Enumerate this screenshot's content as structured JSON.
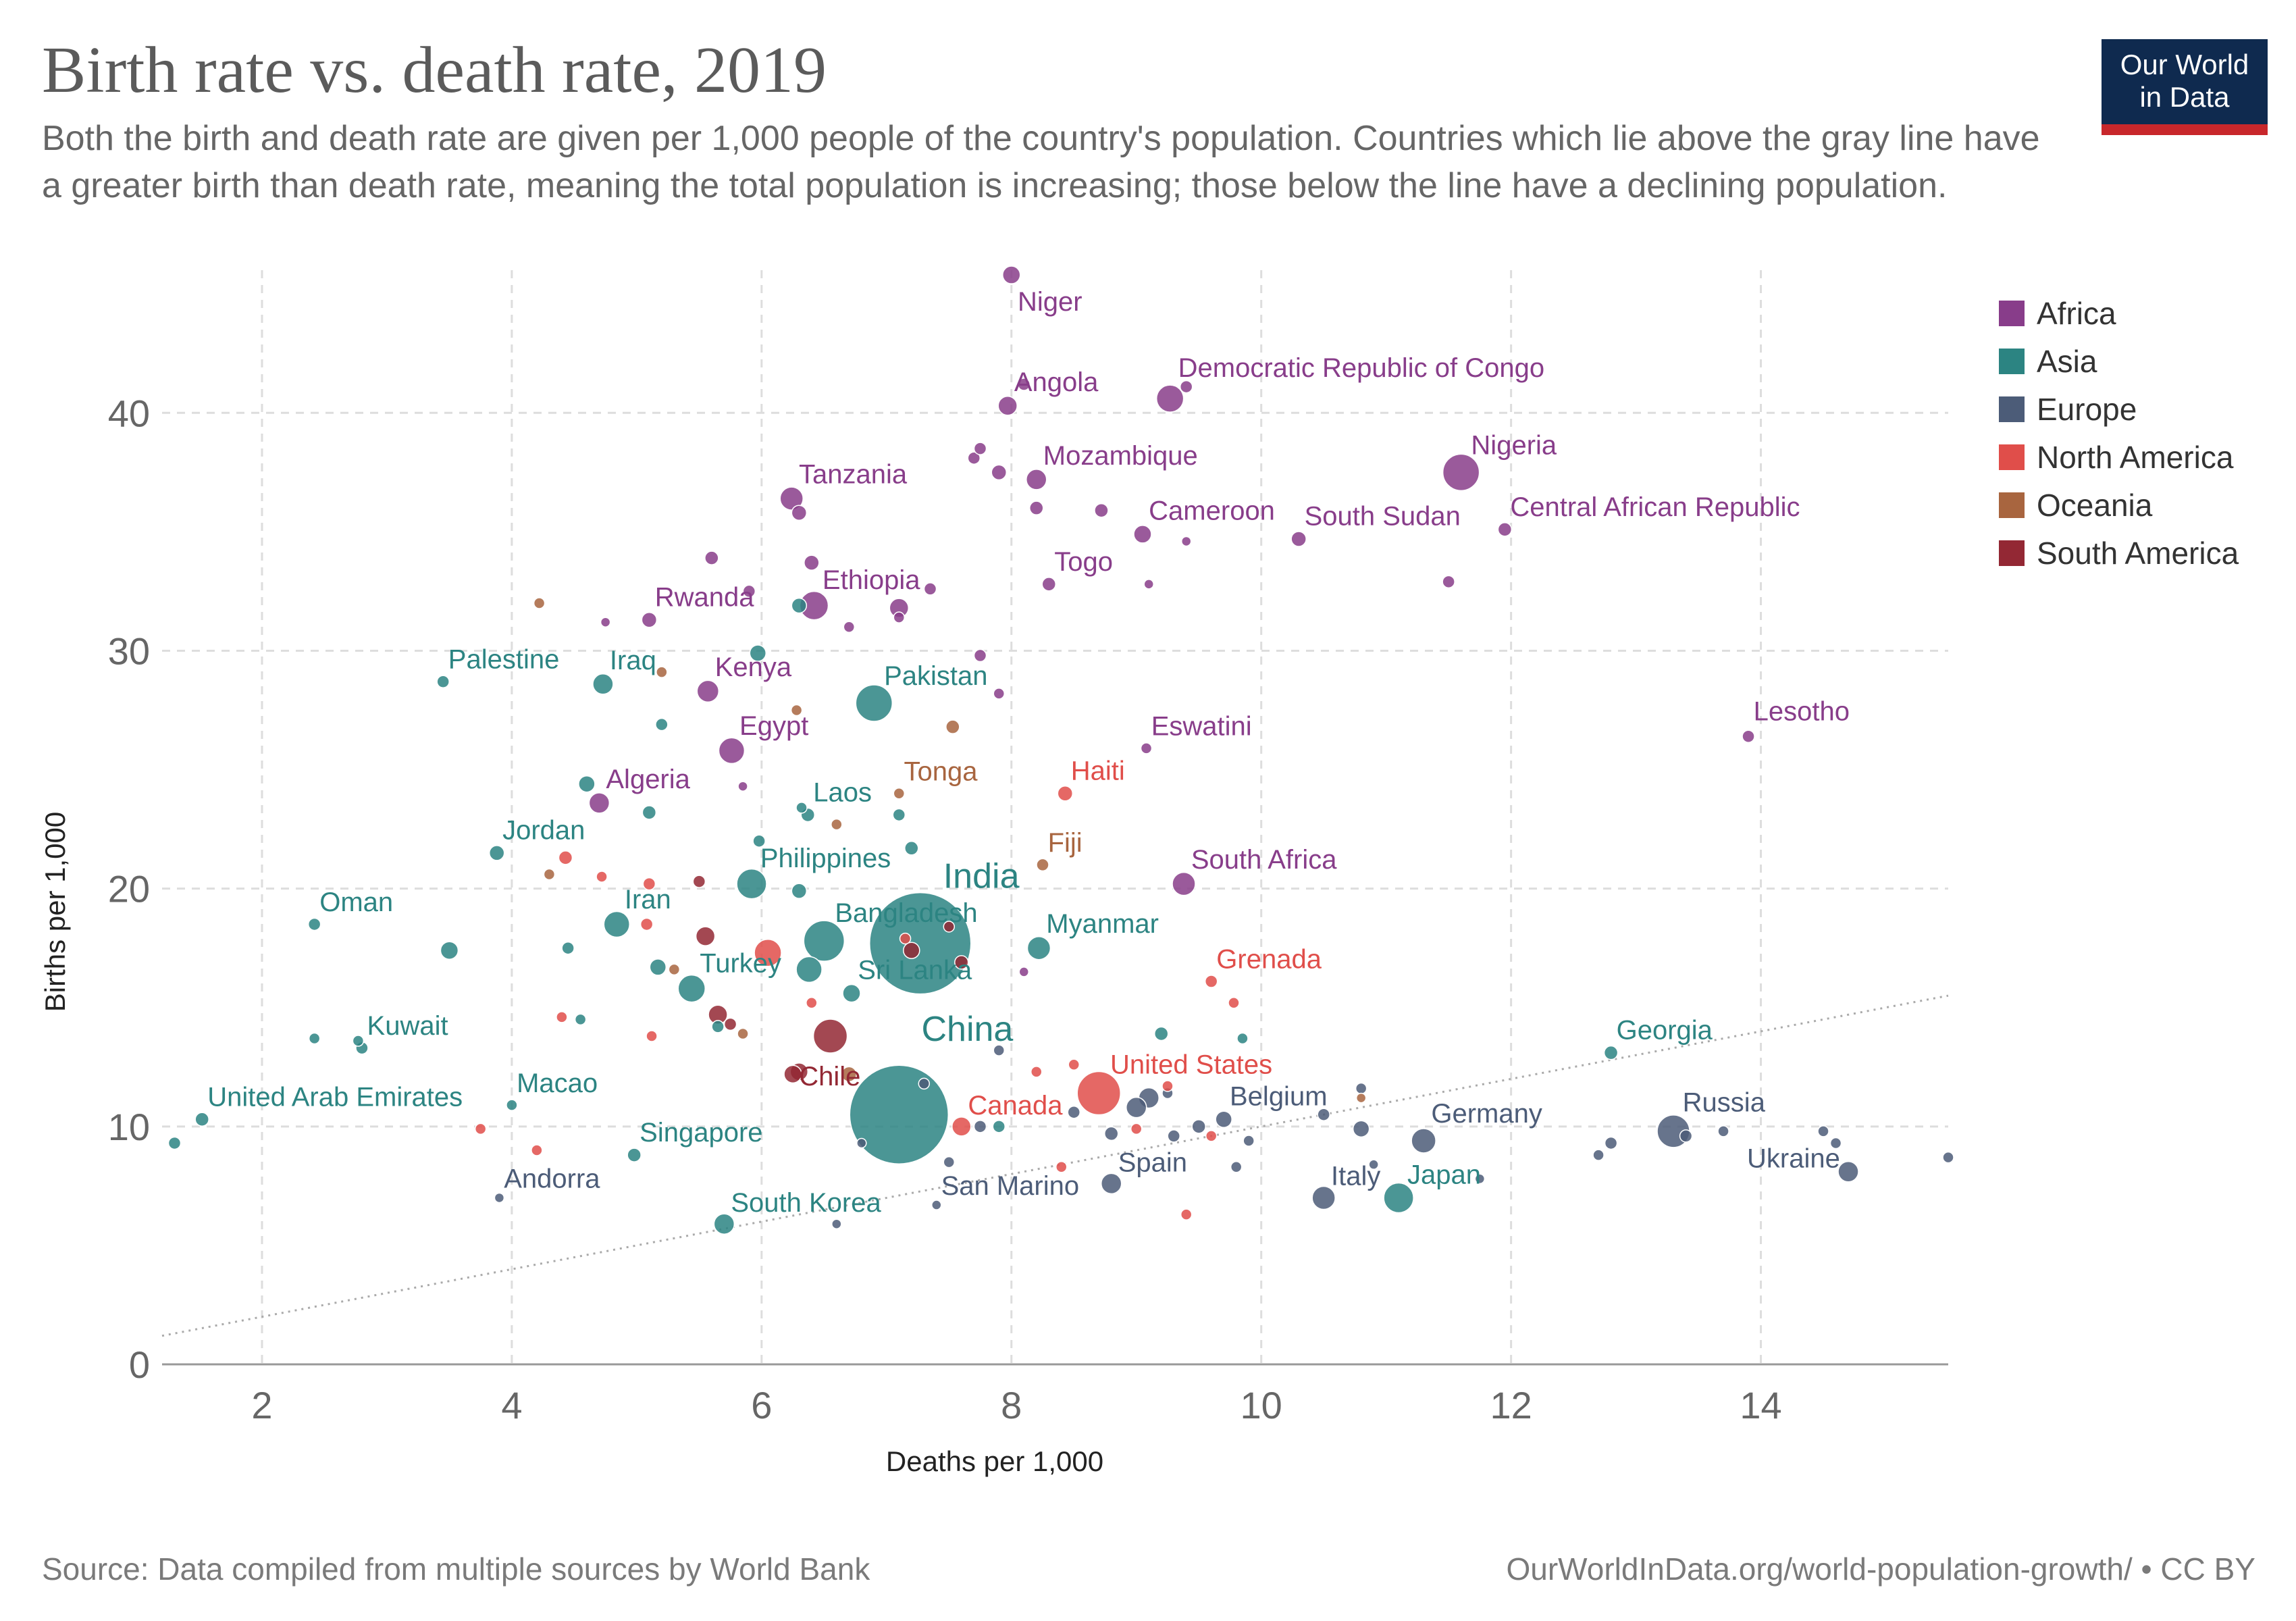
{
  "header": {
    "title": "Birth rate vs. death rate, 2019",
    "subtitle": "Both the birth and death rate are given per 1,000 people of the country's population. Countries which lie above the gray line have a greater birth than death rate, meaning the total population is increasing; those below the line have a declining population."
  },
  "logo": {
    "line1": "Our World",
    "line2": "in Data"
  },
  "footer": {
    "source": "Source: Data compiled from multiple sources by World Bank",
    "license": "OurWorldInData.org/world-population-growth/ • CC BY"
  },
  "legend": [
    {
      "label": "Africa",
      "color": "#883d8a"
    },
    {
      "label": "Asia",
      "color": "#2c8482"
    },
    {
      "label": "Europe",
      "color": "#4c5c78"
    },
    {
      "label": "North America",
      "color": "#e04e4a"
    },
    {
      "label": "Oceania",
      "color": "#a8653f"
    },
    {
      "label": "South America",
      "color": "#932834"
    }
  ],
  "chart_data": {
    "type": "scatter",
    "xlabel": "Deaths per 1,000",
    "ylabel": "Births per 1,000",
    "xlim": [
      1.2,
      15.5
    ],
    "ylim": [
      0,
      46
    ],
    "xticks": [
      "2",
      "4",
      "6",
      "8",
      "10",
      "12",
      "14"
    ],
    "yticks": [
      "0",
      "10",
      "20",
      "30",
      "40"
    ],
    "grid": true,
    "reference_line": "y = x",
    "labeled_points": [
      {
        "label": "Niger",
        "region": "Africa",
        "x": 8.0,
        "y": 45.8,
        "r": 13
      },
      {
        "label": "Angola",
        "region": "Africa",
        "x": 7.97,
        "y": 40.3,
        "r": 14
      },
      {
        "label": "Democratic Republic of Congo",
        "region": "Africa",
        "x": 9.27,
        "y": 40.6,
        "r": 20
      },
      {
        "label": "Nigeria",
        "region": "Africa",
        "x": 11.6,
        "y": 37.5,
        "r": 27
      },
      {
        "label": "Mozambique",
        "region": "Africa",
        "x": 8.2,
        "y": 37.2,
        "r": 15
      },
      {
        "label": "Tanzania",
        "region": "Africa",
        "x": 6.24,
        "y": 36.4,
        "r": 17
      },
      {
        "label": "Cameroon",
        "region": "Africa",
        "x": 9.05,
        "y": 34.9,
        "r": 13
      },
      {
        "label": "South Sudan",
        "region": "Africa",
        "x": 10.3,
        "y": 34.7,
        "r": 11
      },
      {
        "label": "Central African Republic",
        "region": "Africa",
        "x": 11.95,
        "y": 35.1,
        "r": 10
      },
      {
        "label": "Togo",
        "region": "Africa",
        "x": 8.3,
        "y": 32.8,
        "r": 10
      },
      {
        "label": "Ethiopia",
        "region": "Africa",
        "x": 6.42,
        "y": 31.9,
        "r": 21
      },
      {
        "label": "Rwanda",
        "region": "Africa",
        "x": 5.1,
        "y": 31.3,
        "r": 11
      },
      {
        "label": "Kenya",
        "region": "Africa",
        "x": 5.57,
        "y": 28.3,
        "r": 16
      },
      {
        "label": "Egypt",
        "region": "Africa",
        "x": 5.76,
        "y": 25.8,
        "r": 19
      },
      {
        "label": "Algeria",
        "region": "Africa",
        "x": 4.7,
        "y": 23.6,
        "r": 15
      },
      {
        "label": "Eswatini",
        "region": "Africa",
        "x": 9.08,
        "y": 25.9,
        "r": 8
      },
      {
        "label": "Lesotho",
        "region": "Africa",
        "x": 13.9,
        "y": 26.4,
        "r": 9
      },
      {
        "label": "South Africa",
        "region": "Africa",
        "x": 9.38,
        "y": 20.2,
        "r": 17
      },
      {
        "label": "Palestine",
        "region": "Asia",
        "x": 3.45,
        "y": 28.7,
        "r": 9
      },
      {
        "label": "Iraq",
        "region": "Asia",
        "x": 4.73,
        "y": 28.6,
        "r": 15
      },
      {
        "label": "Pakistan",
        "region": "Asia",
        "x": 6.9,
        "y": 27.8,
        "r": 27
      },
      {
        "label": "Laos",
        "region": "Asia",
        "x": 6.37,
        "y": 23.1,
        "r": 10
      },
      {
        "label": "Jordan",
        "region": "Asia",
        "x": 3.88,
        "y": 21.5,
        "r": 11
      },
      {
        "label": "Philippines",
        "region": "Asia",
        "x": 5.92,
        "y": 20.2,
        "r": 22
      },
      {
        "label": "Oman",
        "region": "Asia",
        "x": 2.42,
        "y": 18.5,
        "r": 9
      },
      {
        "label": "Iran",
        "region": "Asia",
        "x": 4.84,
        "y": 18.5,
        "r": 19
      },
      {
        "label": "Bangladesh",
        "region": "Asia",
        "x": 6.5,
        "y": 17.8,
        "r": 30
      },
      {
        "label": "India",
        "region": "Asia",
        "x": 7.27,
        "y": 17.7,
        "r": 75
      },
      {
        "label": "Myanmar",
        "region": "Asia",
        "x": 8.22,
        "y": 17.5,
        "r": 17
      },
      {
        "label": "Turkey",
        "region": "Asia",
        "x": 5.44,
        "y": 15.8,
        "r": 20
      },
      {
        "label": "Sri Lanka",
        "region": "Asia",
        "x": 6.72,
        "y": 15.6,
        "r": 13
      },
      {
        "label": "Kuwait",
        "region": "Asia",
        "x": 2.8,
        "y": 13.3,
        "r": 9
      },
      {
        "label": "Georgia",
        "region": "Asia",
        "x": 12.8,
        "y": 13.1,
        "r": 10
      },
      {
        "label": "China",
        "region": "Asia",
        "x": 7.1,
        "y": 10.5,
        "r": 73
      },
      {
        "label": "United Arab Emirates",
        "region": "Asia",
        "x": 1.52,
        "y": 10.3,
        "r": 10
      },
      {
        "label": "Macao",
        "region": "Asia",
        "x": 4.0,
        "y": 10.9,
        "r": 8
      },
      {
        "label": "Singapore",
        "region": "Asia",
        "x": 4.98,
        "y": 8.8,
        "r": 10
      },
      {
        "label": "South Korea",
        "region": "Asia",
        "x": 5.7,
        "y": 5.9,
        "r": 15
      },
      {
        "label": "Japan",
        "region": "Asia",
        "x": 11.1,
        "y": 7.0,
        "r": 22
      },
      {
        "label": "Belgium",
        "region": "Europe",
        "x": 9.7,
        "y": 10.3,
        "r": 12
      },
      {
        "label": "Germany",
        "region": "Europe",
        "x": 11.3,
        "y": 9.4,
        "r": 18
      },
      {
        "label": "Russia",
        "region": "Europe",
        "x": 13.3,
        "y": 9.8,
        "r": 24
      },
      {
        "label": "Ukraine",
        "region": "Europe",
        "x": 14.7,
        "y": 8.1,
        "r": 15
      },
      {
        "label": "Spain",
        "region": "Europe",
        "x": 8.8,
        "y": 7.6,
        "r": 15
      },
      {
        "label": "Italy",
        "region": "Europe",
        "x": 10.5,
        "y": 7.0,
        "r": 17
      },
      {
        "label": "San Marino",
        "region": "Europe",
        "x": 7.4,
        "y": 6.7,
        "r": 7
      },
      {
        "label": "Andorra",
        "region": "Europe",
        "x": 3.9,
        "y": 7.0,
        "r": 7
      },
      {
        "label": "Haiti",
        "region": "North America",
        "x": 8.43,
        "y": 24.0,
        "r": 11
      },
      {
        "label": "Grenada",
        "region": "North America",
        "x": 9.6,
        "y": 16.1,
        "r": 9
      },
      {
        "label": "United States",
        "region": "North America",
        "x": 8.7,
        "y": 11.4,
        "r": 32
      },
      {
        "label": "Canada",
        "region": "North America",
        "x": 7.6,
        "y": 10.0,
        "r": 14
      },
      {
        "label": "Tonga",
        "region": "Oceania",
        "x": 7.1,
        "y": 24.0,
        "r": 8
      },
      {
        "label": "Fiji",
        "region": "Oceania",
        "x": 8.25,
        "y": 21.0,
        "r": 9
      },
      {
        "label": "Chile",
        "region": "South America",
        "x": 6.25,
        "y": 12.2,
        "r": 13
      }
    ],
    "unlabeled_points": [
      {
        "region": "Africa",
        "x": 8.1,
        "y": 41.2,
        "r": 9
      },
      {
        "region": "Africa",
        "x": 9.4,
        "y": 41.1,
        "r": 9
      },
      {
        "region": "Africa",
        "x": 7.7,
        "y": 38.1,
        "r": 9
      },
      {
        "region": "Africa",
        "x": 7.75,
        "y": 38.5,
        "r": 9
      },
      {
        "region": "Africa",
        "x": 7.9,
        "y": 37.5,
        "r": 11
      },
      {
        "region": "Africa",
        "x": 8.2,
        "y": 36.0,
        "r": 10
      },
      {
        "region": "Africa",
        "x": 8.72,
        "y": 35.9,
        "r": 10
      },
      {
        "region": "Africa",
        "x": 6.3,
        "y": 35.8,
        "r": 11
      },
      {
        "region": "Africa",
        "x": 9.4,
        "y": 34.6,
        "r": 7
      },
      {
        "region": "Africa",
        "x": 5.6,
        "y": 33.9,
        "r": 10
      },
      {
        "region": "Africa",
        "x": 6.4,
        "y": 33.7,
        "r": 11
      },
      {
        "region": "Africa",
        "x": 11.5,
        "y": 32.9,
        "r": 9
      },
      {
        "region": "Africa",
        "x": 7.35,
        "y": 32.6,
        "r": 9
      },
      {
        "region": "Africa",
        "x": 9.1,
        "y": 32.8,
        "r": 7
      },
      {
        "region": "Africa",
        "x": 5.9,
        "y": 32.5,
        "r": 9
      },
      {
        "region": "Africa",
        "x": 7.1,
        "y": 31.8,
        "r": 14
      },
      {
        "region": "Africa",
        "x": 7.1,
        "y": 31.4,
        "r": 8
      },
      {
        "region": "Africa",
        "x": 4.75,
        "y": 31.2,
        "r": 7
      },
      {
        "region": "Africa",
        "x": 6.7,
        "y": 31.0,
        "r": 8
      },
      {
        "region": "Africa",
        "x": 7.75,
        "y": 29.8,
        "r": 9
      },
      {
        "region": "Africa",
        "x": 7.9,
        "y": 28.2,
        "r": 8
      },
      {
        "region": "Africa",
        "x": 5.85,
        "y": 24.3,
        "r": 7
      },
      {
        "region": "Africa",
        "x": 8.1,
        "y": 16.5,
        "r": 7
      },
      {
        "region": "Asia",
        "x": 5.97,
        "y": 29.9,
        "r": 12
      },
      {
        "region": "Asia",
        "x": 6.3,
        "y": 31.9,
        "r": 11
      },
      {
        "region": "Asia",
        "x": 5.2,
        "y": 26.9,
        "r": 9
      },
      {
        "region": "Asia",
        "x": 4.6,
        "y": 24.4,
        "r": 12
      },
      {
        "region": "Asia",
        "x": 5.1,
        "y": 23.2,
        "r": 10
      },
      {
        "region": "Asia",
        "x": 6.32,
        "y": 23.4,
        "r": 8
      },
      {
        "region": "Asia",
        "x": 7.1,
        "y": 23.1,
        "r": 9
      },
      {
        "region": "Asia",
        "x": 7.2,
        "y": 21.7,
        "r": 10
      },
      {
        "region": "Asia",
        "x": 5.98,
        "y": 22.0,
        "r": 9
      },
      {
        "region": "Asia",
        "x": 6.3,
        "y": 19.9,
        "r": 11
      },
      {
        "region": "Asia",
        "x": 3.5,
        "y": 17.4,
        "r": 13
      },
      {
        "region": "Asia",
        "x": 4.45,
        "y": 17.5,
        "r": 9
      },
      {
        "region": "Asia",
        "x": 5.17,
        "y": 16.7,
        "r": 12
      },
      {
        "region": "Asia",
        "x": 6.38,
        "y": 16.6,
        "r": 19
      },
      {
        "region": "Asia",
        "x": 5.65,
        "y": 14.2,
        "r": 9
      },
      {
        "region": "Asia",
        "x": 2.42,
        "y": 13.7,
        "r": 8
      },
      {
        "region": "Asia",
        "x": 2.77,
        "y": 13.6,
        "r": 8
      },
      {
        "region": "Asia",
        "x": 4.55,
        "y": 14.5,
        "r": 8
      },
      {
        "region": "Asia",
        "x": 9.2,
        "y": 13.9,
        "r": 10
      },
      {
        "region": "Asia",
        "x": 9.85,
        "y": 13.7,
        "r": 8
      },
      {
        "region": "Asia",
        "x": 7.9,
        "y": 10.0,
        "r": 9
      },
      {
        "region": "Asia",
        "x": 1.3,
        "y": 9.3,
        "r": 9
      },
      {
        "region": "Europe",
        "x": 7.9,
        "y": 13.2,
        "r": 8
      },
      {
        "region": "Europe",
        "x": 9.25,
        "y": 11.4,
        "r": 8
      },
      {
        "region": "Europe",
        "x": 7.3,
        "y": 11.8,
        "r": 8
      },
      {
        "region": "Europe",
        "x": 9.1,
        "y": 11.2,
        "r": 15
      },
      {
        "region": "Europe",
        "x": 9.0,
        "y": 10.8,
        "r": 15
      },
      {
        "region": "Europe",
        "x": 8.5,
        "y": 10.6,
        "r": 9
      },
      {
        "region": "Europe",
        "x": 10.5,
        "y": 10.5,
        "r": 9
      },
      {
        "region": "Europe",
        "x": 10.8,
        "y": 11.6,
        "r": 8
      },
      {
        "region": "Europe",
        "x": 10.8,
        "y": 9.9,
        "r": 12
      },
      {
        "region": "Europe",
        "x": 9.5,
        "y": 10.0,
        "r": 10
      },
      {
        "region": "Europe",
        "x": 9.3,
        "y": 9.6,
        "r": 9
      },
      {
        "region": "Europe",
        "x": 9.9,
        "y": 9.4,
        "r": 8
      },
      {
        "region": "Europe",
        "x": 8.8,
        "y": 9.7,
        "r": 10
      },
      {
        "region": "Europe",
        "x": 7.75,
        "y": 10.0,
        "r": 9
      },
      {
        "region": "Europe",
        "x": 6.8,
        "y": 9.3,
        "r": 7
      },
      {
        "region": "Europe",
        "x": 7.5,
        "y": 8.5,
        "r": 8
      },
      {
        "region": "Europe",
        "x": 9.8,
        "y": 8.3,
        "r": 8
      },
      {
        "region": "Europe",
        "x": 12.7,
        "y": 8.8,
        "r": 8
      },
      {
        "region": "Europe",
        "x": 12.8,
        "y": 9.3,
        "r": 9
      },
      {
        "region": "Europe",
        "x": 13.4,
        "y": 9.6,
        "r": 9
      },
      {
        "region": "Europe",
        "x": 13.7,
        "y": 9.8,
        "r": 8
      },
      {
        "region": "Europe",
        "x": 14.5,
        "y": 9.8,
        "r": 8
      },
      {
        "region": "Europe",
        "x": 14.6,
        "y": 9.3,
        "r": 8
      },
      {
        "region": "Europe",
        "x": 15.5,
        "y": 8.7,
        "r": 8
      },
      {
        "region": "Europe",
        "x": 11.75,
        "y": 7.8,
        "r": 7
      },
      {
        "region": "Europe",
        "x": 10.9,
        "y": 8.4,
        "r": 7
      },
      {
        "region": "Europe",
        "x": 6.6,
        "y": 5.9,
        "r": 7
      },
      {
        "region": "North America",
        "x": 6.05,
        "y": 17.3,
        "r": 20
      },
      {
        "region": "North America",
        "x": 5.1,
        "y": 20.2,
        "r": 9
      },
      {
        "region": "North America",
        "x": 4.72,
        "y": 20.5,
        "r": 8
      },
      {
        "region": "North America",
        "x": 4.43,
        "y": 21.3,
        "r": 10
      },
      {
        "region": "North America",
        "x": 5.08,
        "y": 18.5,
        "r": 9
      },
      {
        "region": "North America",
        "x": 4.4,
        "y": 14.6,
        "r": 8
      },
      {
        "region": "North America",
        "x": 5.12,
        "y": 13.8,
        "r": 8
      },
      {
        "region": "North America",
        "x": 6.4,
        "y": 15.2,
        "r": 8
      },
      {
        "region": "North America",
        "x": 9.78,
        "y": 15.2,
        "r": 8
      },
      {
        "region": "North America",
        "x": 8.5,
        "y": 12.6,
        "r": 8
      },
      {
        "region": "North America",
        "x": 8.2,
        "y": 12.3,
        "r": 8
      },
      {
        "region": "North America",
        "x": 9.25,
        "y": 11.7,
        "r": 8
      },
      {
        "region": "North America",
        "x": 9.0,
        "y": 9.9,
        "r": 8
      },
      {
        "region": "North America",
        "x": 9.6,
        "y": 9.6,
        "r": 8
      },
      {
        "region": "North America",
        "x": 8.4,
        "y": 8.3,
        "r": 8
      },
      {
        "region": "North America",
        "x": 9.4,
        "y": 6.3,
        "r": 8
      },
      {
        "region": "North America",
        "x": 3.75,
        "y": 9.9,
        "r": 8
      },
      {
        "region": "North America",
        "x": 4.2,
        "y": 9.0,
        "r": 8
      },
      {
        "region": "North America",
        "x": 7.15,
        "y": 17.9,
        "r": 8
      },
      {
        "region": "Oceania",
        "x": 4.22,
        "y": 32.0,
        "r": 8
      },
      {
        "region": "Oceania",
        "x": 5.2,
        "y": 29.1,
        "r": 8
      },
      {
        "region": "Oceania",
        "x": 7.53,
        "y": 26.8,
        "r": 10
      },
      {
        "region": "Oceania",
        "x": 6.28,
        "y": 27.5,
        "r": 8
      },
      {
        "region": "Oceania",
        "x": 6.6,
        "y": 22.7,
        "r": 8
      },
      {
        "region": "Oceania",
        "x": 4.3,
        "y": 20.6,
        "r": 8
      },
      {
        "region": "Oceania",
        "x": 5.3,
        "y": 16.6,
        "r": 8
      },
      {
        "region": "Oceania",
        "x": 5.85,
        "y": 13.9,
        "r": 8
      },
      {
        "region": "Oceania",
        "x": 6.7,
        "y": 12.2,
        "r": 11
      },
      {
        "region": "Oceania",
        "x": 10.8,
        "y": 11.2,
        "r": 7
      },
      {
        "region": "South America",
        "x": 5.55,
        "y": 18.0,
        "r": 14
      },
      {
        "region": "South America",
        "x": 5.5,
        "y": 20.3,
        "r": 9
      },
      {
        "region": "South America",
        "x": 7.2,
        "y": 17.4,
        "r": 12
      },
      {
        "region": "South America",
        "x": 7.5,
        "y": 18.4,
        "r": 8
      },
      {
        "region": "South America",
        "x": 7.6,
        "y": 16.9,
        "r": 10
      },
      {
        "region": "South America",
        "x": 5.65,
        "y": 14.7,
        "r": 14
      },
      {
        "region": "South America",
        "x": 5.75,
        "y": 14.3,
        "r": 9
      },
      {
        "region": "South America",
        "x": 6.55,
        "y": 13.8,
        "r": 25
      },
      {
        "region": "South America",
        "x": 6.3,
        "y": 12.3,
        "r": 13
      }
    ]
  }
}
